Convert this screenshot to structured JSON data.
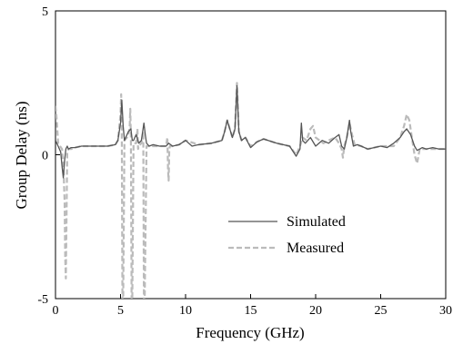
{
  "chart_data": {
    "type": "line",
    "title": "",
    "xlabel": "Frequency (GHz)",
    "ylabel": "Group Delay  (ns)",
    "xlim": [
      0,
      30
    ],
    "ylim": [
      -5,
      5
    ],
    "xticks": [
      "0",
      "5",
      "10",
      "15",
      "20",
      "25",
      "30"
    ],
    "yticks": [
      "-5",
      "0",
      "5"
    ],
    "legend_position": "bottom-center",
    "grid": false,
    "series": [
      {
        "name": "Simulated",
        "style": "solid",
        "color": "#555555",
        "x": [
          0,
          0.2,
          0.4,
          0.5,
          0.6,
          0.7,
          0.8,
          0.9,
          1.0,
          1.2,
          1.5,
          2.0,
          3.0,
          4.0,
          4.6,
          4.8,
          5.0,
          5.1,
          5.2,
          5.3,
          5.4,
          5.6,
          5.8,
          5.9,
          6.0,
          6.1,
          6.2,
          6.4,
          6.6,
          6.8,
          6.9,
          7.0,
          7.2,
          7.5,
          8.0,
          8.5,
          8.7,
          9.0,
          9.5,
          10.0,
          10.5,
          11.0,
          12.0,
          12.8,
          13.0,
          13.2,
          13.4,
          13.6,
          13.8,
          13.95,
          14.1,
          14.3,
          14.6,
          15.0,
          15.5,
          16.0,
          17.0,
          18.0,
          18.5,
          18.8,
          18.9,
          19.0,
          19.2,
          19.6,
          20.0,
          20.5,
          21.0,
          21.5,
          21.8,
          22.0,
          22.2,
          22.4,
          22.6,
          22.7,
          22.9,
          23.2,
          23.5,
          24.0,
          24.5,
          25.0,
          25.5,
          26.0,
          26.5,
          26.8,
          27.0,
          27.3,
          27.6,
          27.8,
          28.0,
          28.2,
          28.5,
          29.0,
          29.5,
          30.0
        ],
        "y": [
          0.5,
          0.3,
          0.1,
          -0.4,
          -0.8,
          -0.2,
          0.2,
          0.3,
          0.2,
          0.25,
          0.25,
          0.3,
          0.3,
          0.3,
          0.35,
          0.5,
          1.1,
          1.9,
          1.0,
          0.5,
          0.6,
          0.8,
          0.9,
          0.5,
          0.5,
          0.6,
          0.7,
          0.4,
          0.5,
          1.1,
          0.7,
          0.4,
          0.3,
          0.35,
          0.3,
          0.3,
          0.4,
          0.3,
          0.35,
          0.5,
          0.3,
          0.35,
          0.4,
          0.5,
          0.8,
          1.2,
          0.9,
          0.6,
          0.9,
          2.4,
          0.8,
          0.5,
          0.6,
          0.25,
          0.45,
          0.55,
          0.4,
          0.3,
          -0.05,
          0.2,
          1.1,
          0.5,
          0.4,
          0.6,
          0.3,
          0.5,
          0.4,
          0.6,
          0.7,
          0.3,
          0.2,
          0.6,
          1.2,
          0.8,
          0.3,
          0.35,
          0.3,
          0.2,
          0.25,
          0.3,
          0.25,
          0.4,
          0.6,
          0.8,
          0.9,
          0.7,
          0.3,
          0.15,
          0.2,
          0.25,
          0.2,
          0.25,
          0.2,
          0.2
        ]
      },
      {
        "name": "Measured",
        "style": "dashed",
        "color": "#bbbbbb",
        "x": [
          0,
          0.1,
          0.2,
          0.35,
          0.5,
          0.6,
          0.7,
          0.75,
          0.8,
          0.85,
          0.9,
          1.0,
          1.2,
          1.5,
          2.0,
          3.0,
          4.0,
          4.6,
          4.8,
          5.0,
          5.05,
          5.1,
          5.15,
          5.2,
          5.3,
          5.5,
          5.7,
          5.75,
          5.8,
          5.85,
          5.9,
          6.0,
          6.2,
          6.3,
          6.35,
          6.4,
          6.6,
          6.75,
          6.8,
          6.85,
          7.0,
          7.3,
          8.0,
          8.5,
          8.6,
          8.65,
          8.7,
          8.75,
          8.8,
          9.0,
          9.5,
          10.0,
          11.0,
          12.0,
          12.8,
          13.0,
          13.2,
          13.4,
          13.6,
          13.8,
          13.95,
          14.1,
          14.3,
          14.6,
          15.0,
          15.5,
          16.0,
          17.0,
          18.0,
          18.5,
          18.8,
          19.0,
          19.3,
          19.6,
          19.8,
          20.0,
          20.3,
          20.6,
          21.0,
          21.5,
          21.8,
          22.0,
          22.1,
          22.2,
          22.4,
          22.6,
          22.8,
          23.0,
          23.5,
          24.0,
          25.0,
          26.0,
          26.5,
          26.8,
          27.0,
          27.2,
          27.4,
          27.6,
          27.8,
          28.0,
          28.3,
          29.0,
          30.0
        ],
        "y": [
          1.7,
          1.2,
          0.4,
          0.3,
          0.2,
          -0.3,
          -1.6,
          -3.6,
          -4.3,
          -2.0,
          0.1,
          0.2,
          0.2,
          0.25,
          0.3,
          0.3,
          0.3,
          0.35,
          0.5,
          1.4,
          2.1,
          0.8,
          -5.2,
          -5.2,
          0.5,
          0.6,
          0.9,
          1.6,
          0.6,
          -5.2,
          -5.2,
          0.4,
          0.4,
          0.9,
          0.2,
          0.3,
          0.4,
          0.8,
          -5.2,
          -5.2,
          0.3,
          0.3,
          0.3,
          0.3,
          0.6,
          -0.5,
          -0.9,
          0.2,
          0.3,
          0.3,
          0.35,
          0.5,
          0.35,
          0.4,
          0.5,
          0.8,
          1.2,
          0.9,
          0.6,
          0.9,
          2.5,
          0.8,
          0.5,
          0.6,
          0.3,
          0.45,
          0.55,
          0.4,
          0.3,
          0.0,
          0.3,
          0.6,
          0.5,
          0.9,
          1.0,
          0.6,
          0.5,
          0.4,
          0.5,
          0.6,
          0.4,
          0.2,
          -0.1,
          0.3,
          0.6,
          1.1,
          0.7,
          0.35,
          0.3,
          0.2,
          0.3,
          0.3,
          0.6,
          1.0,
          1.4,
          1.2,
          0.6,
          0.0,
          -0.3,
          0.2,
          0.2,
          0.2,
          0.2
        ]
      }
    ]
  }
}
